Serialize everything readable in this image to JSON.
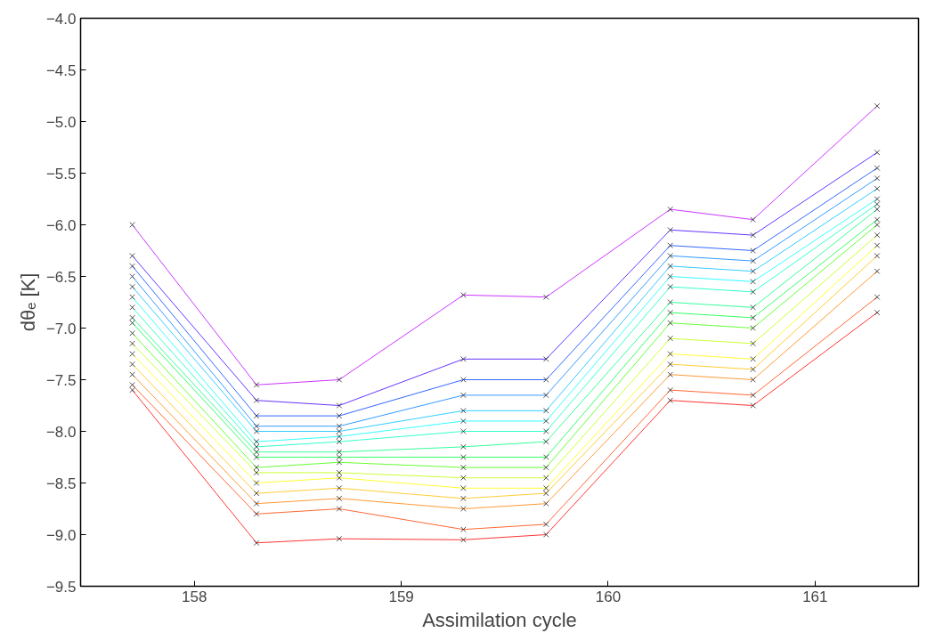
{
  "chart_data": {
    "type": "line",
    "xlabel": "Assimilation cycle",
    "ylabel": "dθₑ [K]",
    "x": [
      157.7,
      158.3,
      158.7,
      159.3,
      159.7,
      160.3,
      160.7,
      161.3
    ],
    "xlim": [
      157.45,
      161.5
    ],
    "xticks": [
      158,
      159,
      160,
      161
    ],
    "ylim": [
      -9.5,
      -4.0
    ],
    "yticks": [
      {
        "value": -9.5,
        "label": "−9.5"
      },
      {
        "value": -9.0,
        "label": "−9.0"
      },
      {
        "value": -8.5,
        "label": "−8.5"
      },
      {
        "value": -8.0,
        "label": "−8.0"
      },
      {
        "value": -7.5,
        "label": "−7.5"
      },
      {
        "value": -7.0,
        "label": "−7.0"
      },
      {
        "value": -6.5,
        "label": "−6.5"
      },
      {
        "value": -6.0,
        "label": "−6.0"
      },
      {
        "value": -5.5,
        "label": "−5.5"
      },
      {
        "value": -5.0,
        "label": "−5.0"
      },
      {
        "value": -4.5,
        "label": "−4.5"
      },
      {
        "value": -4.0,
        "label": "−4.0"
      }
    ],
    "marker": "cross",
    "line_style": "solid",
    "grid": false,
    "series": [
      {
        "color": "#ff0000",
        "values": [
          -7.6,
          -9.08,
          -9.04,
          -9.05,
          -9.0,
          -7.7,
          -7.75,
          -6.85
        ]
      },
      {
        "color": "#ff4000",
        "values": [
          -7.55,
          -8.8,
          -8.75,
          -8.95,
          -8.9,
          -7.6,
          -7.65,
          -6.7
        ]
      },
      {
        "color": "#ff8000",
        "values": [
          -7.45,
          -8.7,
          -8.65,
          -8.75,
          -8.7,
          -7.45,
          -7.5,
          -6.45
        ]
      },
      {
        "color": "#ffbf00",
        "values": [
          -7.35,
          -8.6,
          -8.55,
          -8.65,
          -8.6,
          -7.35,
          -7.4,
          -6.3
        ]
      },
      {
        "color": "#ffff00",
        "values": [
          -7.25,
          -8.5,
          -8.45,
          -8.55,
          -8.55,
          -7.25,
          -7.3,
          -6.2
        ]
      },
      {
        "color": "#bfff00",
        "values": [
          -7.15,
          -8.4,
          -8.4,
          -8.45,
          -8.45,
          -7.1,
          -7.15,
          -6.1
        ]
      },
      {
        "color": "#40ff00",
        "values": [
          -7.05,
          -8.35,
          -8.3,
          -8.35,
          -8.35,
          -6.95,
          -7.0,
          -6.0
        ]
      },
      {
        "color": "#00ff40",
        "values": [
          -6.95,
          -8.25,
          -8.25,
          -8.25,
          -8.25,
          -6.85,
          -6.9,
          -5.95
        ]
      },
      {
        "color": "#00ff80",
        "values": [
          -6.9,
          -8.2,
          -8.2,
          -8.15,
          -8.1,
          -6.75,
          -6.8,
          -5.85
        ]
      },
      {
        "color": "#00ffbf",
        "values": [
          -6.8,
          -8.15,
          -8.1,
          -8.0,
          -8.0,
          -6.6,
          -6.65,
          -5.8
        ]
      },
      {
        "color": "#00ffff",
        "values": [
          -6.7,
          -8.1,
          -8.05,
          -7.9,
          -7.9,
          -6.5,
          -6.55,
          -5.75
        ]
      },
      {
        "color": "#00bfff",
        "values": [
          -6.6,
          -8.0,
          -8.0,
          -7.8,
          -7.8,
          -6.4,
          -6.45,
          -5.65
        ]
      },
      {
        "color": "#0080ff",
        "values": [
          -6.5,
          -7.95,
          -7.95,
          -7.65,
          -7.65,
          -6.3,
          -6.35,
          -5.55
        ]
      },
      {
        "color": "#0040ff",
        "values": [
          -6.4,
          -7.85,
          -7.85,
          -7.5,
          -7.5,
          -6.2,
          -6.25,
          -5.45
        ]
      },
      {
        "color": "#4000ff",
        "values": [
          -6.3,
          -7.7,
          -7.75,
          -7.3,
          -7.3,
          -6.05,
          -6.1,
          -5.3
        ]
      },
      {
        "color": "#bf00ff",
        "values": [
          -6.0,
          -7.55,
          -7.5,
          -6.68,
          -6.7,
          -5.85,
          -5.95,
          -4.85
        ]
      }
    ]
  }
}
